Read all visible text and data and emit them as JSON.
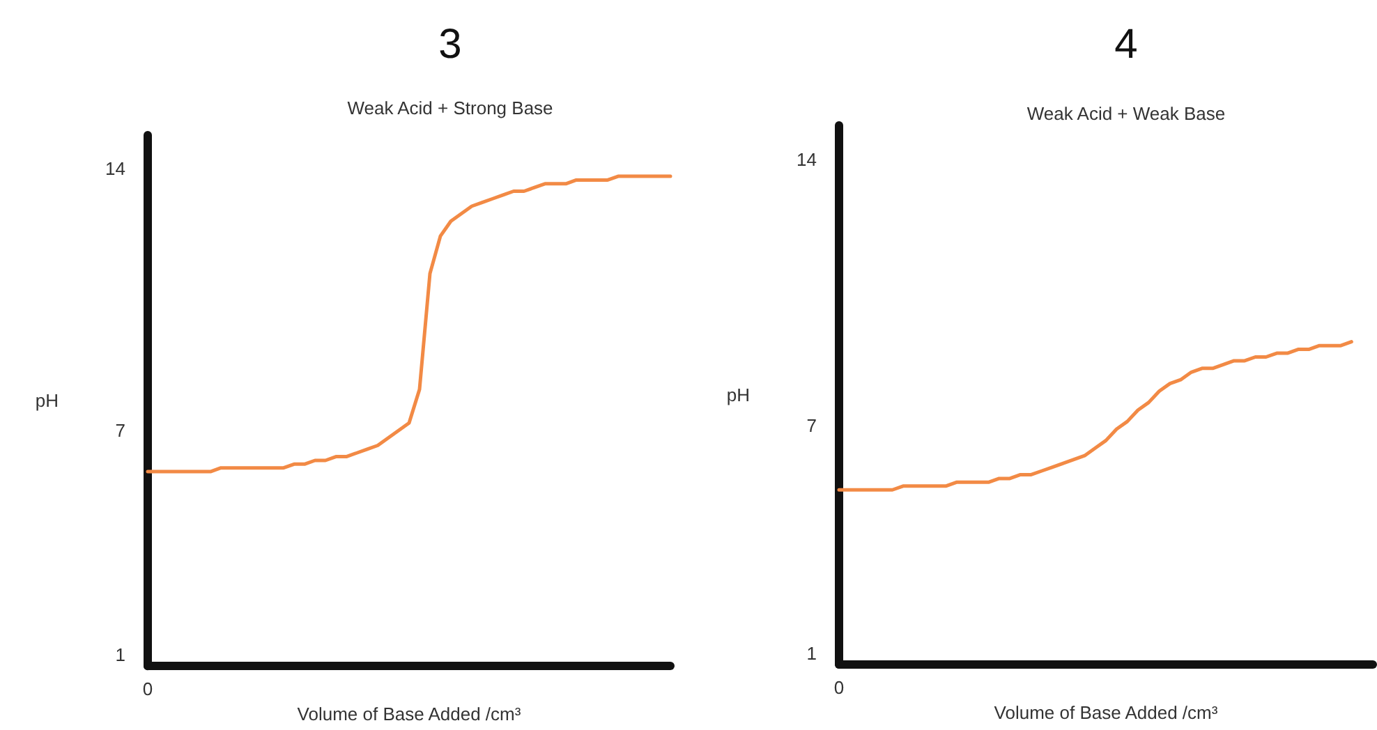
{
  "chart_data": [
    {
      "type": "line",
      "title": "3",
      "subtitle": "Weak Acid + Strong Base",
      "xlabel": "Volume of Base Added /cm³",
      "ylabel": "pH",
      "ylim": [
        0.7,
        14.9
      ],
      "yticks": [
        1,
        7,
        14
      ],
      "marker": "none",
      "line_style": "solid",
      "categories": [
        "0",
        null,
        null,
        null,
        null,
        null,
        null,
        null,
        null,
        null,
        null,
        null,
        null,
        null,
        null,
        null,
        null,
        null,
        null,
        null,
        null,
        null,
        null,
        null,
        null,
        null,
        null,
        null,
        null,
        null,
        null,
        null,
        null,
        null,
        null,
        null,
        null,
        null,
        null,
        null,
        null,
        null,
        null,
        null,
        null,
        null,
        null,
        null,
        null,
        null,
        null
      ],
      "series": [
        {
          "color": "#f28a45",
          "values": [
            5.9,
            5.9,
            5.9,
            5.9,
            5.9,
            5.9,
            5.9,
            6.0,
            6.0,
            6.0,
            6.0,
            6.0,
            6.0,
            6.0,
            6.1,
            6.1,
            6.2,
            6.2,
            6.3,
            6.3,
            6.4,
            6.5,
            6.6,
            6.8,
            7.0,
            7.2,
            8.1,
            11.2,
            12.2,
            12.6,
            12.8,
            13.0,
            13.1,
            13.2,
            13.3,
            13.4,
            13.4,
            13.5,
            13.6,
            13.6,
            13.6,
            13.7,
            13.7,
            13.7,
            13.7,
            13.8,
            13.8,
            13.8,
            13.8,
            13.8,
            13.8
          ]
        }
      ]
    },
    {
      "type": "line",
      "title": "4",
      "subtitle": "Weak Acid + Weak Base",
      "xlabel": "Volume of Base Added /cm³",
      "ylabel": "pH",
      "ylim": [
        0.7,
        14.9
      ],
      "yticks": [
        1,
        7,
        14
      ],
      "marker": "none",
      "line_style": "solid",
      "categories": [
        "0",
        null,
        null,
        null,
        null,
        null,
        null,
        null,
        null,
        null,
        null,
        null,
        null,
        null,
        null,
        null,
        null,
        null,
        null,
        null,
        null,
        null,
        null,
        null,
        null,
        null,
        null,
        null,
        null,
        null,
        null,
        null,
        null,
        null,
        null,
        null,
        null,
        null,
        null,
        null,
        null,
        null,
        null,
        null,
        null,
        null,
        null,
        null,
        null,
        null,
        null
      ],
      "series": [
        {
          "color": "#f28a45",
          "values": [
            5.3,
            5.3,
            5.3,
            5.3,
            5.3,
            5.3,
            5.4,
            5.4,
            5.4,
            5.4,
            5.4,
            5.5,
            5.5,
            5.5,
            5.5,
            5.6,
            5.6,
            5.7,
            5.7,
            5.8,
            5.9,
            6.0,
            6.1,
            6.2,
            6.4,
            6.6,
            6.9,
            7.1,
            7.4,
            7.6,
            7.9,
            8.1,
            8.2,
            8.4,
            8.5,
            8.5,
            8.6,
            8.7,
            8.7,
            8.8,
            8.8,
            8.9,
            8.9,
            9.0,
            9.0,
            9.1,
            9.1,
            9.1,
            9.2,
            null,
            null
          ]
        }
      ]
    }
  ]
}
